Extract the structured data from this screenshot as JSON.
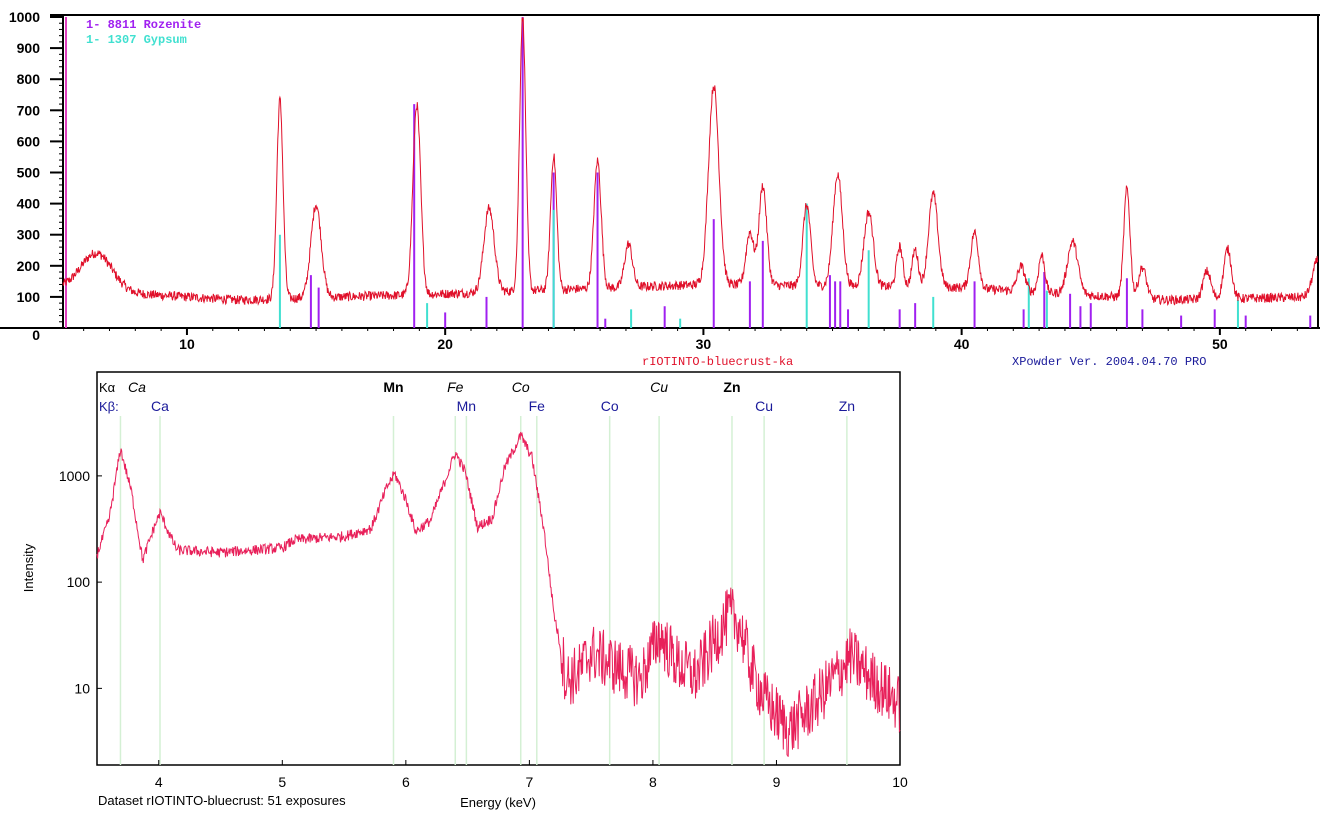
{
  "chart_data": [
    {
      "type": "line",
      "title": "",
      "xlabel": "",
      "ylabel": "",
      "xlim": [
        5.2,
        53.8
      ],
      "ylim": [
        0,
        1000
      ],
      "xticks": [
        10,
        20,
        30,
        40,
        50
      ],
      "yticks": [
        0,
        100,
        200,
        300,
        400,
        500,
        600,
        700,
        800,
        900,
        1000
      ],
      "grid": false,
      "legend": [
        {
          "label": "1- 8811 Rozenite",
          "color": "#a020f0"
        },
        {
          "label": "1- 1307 Gypsum",
          "color": "#40e0d0"
        }
      ],
      "footer_left": "rIOTINTO-bluecrust-ka",
      "footer_right": "XPowder Ver. 2004.04.70 PRO",
      "series_color": "#e0102a",
      "baseline": [
        [
          5.2,
          130
        ],
        [
          8,
          110
        ],
        [
          12,
          90
        ],
        [
          20,
          110
        ],
        [
          30,
          140
        ],
        [
          40,
          130
        ],
        [
          48,
          90
        ],
        [
          53.8,
          100
        ]
      ],
      "peaks": [
        [
          6.5,
          120,
          0.6
        ],
        [
          13.6,
          640,
          0.12
        ],
        [
          15,
          300,
          0.2
        ],
        [
          18.9,
          610,
          0.15
        ],
        [
          21.7,
          270,
          0.2
        ],
        [
          23.0,
          880,
          0.12
        ],
        [
          24.2,
          430,
          0.12
        ],
        [
          25.9,
          410,
          0.14
        ],
        [
          27.1,
          140,
          0.15
        ],
        [
          30.4,
          640,
          0.2
        ],
        [
          31.8,
          170,
          0.15
        ],
        [
          32.3,
          320,
          0.15
        ],
        [
          34.0,
          260,
          0.15
        ],
        [
          35.2,
          360,
          0.18
        ],
        [
          36.4,
          240,
          0.18
        ],
        [
          37.6,
          130,
          0.12
        ],
        [
          38.2,
          120,
          0.12
        ],
        [
          38.9,
          300,
          0.18
        ],
        [
          40.5,
          180,
          0.15
        ],
        [
          42.3,
          80,
          0.15
        ],
        [
          43.1,
          120,
          0.12
        ],
        [
          44.3,
          170,
          0.2
        ],
        [
          46.4,
          350,
          0.12
        ],
        [
          47,
          100,
          0.15
        ],
        [
          49.5,
          90,
          0.15
        ],
        [
          50.3,
          160,
          0.15
        ],
        [
          53.8,
          120,
          0.2
        ]
      ],
      "sticks": {
        "Rozenite": [
          [
            14.8,
            170
          ],
          [
            15.1,
            130
          ],
          [
            18.8,
            720
          ],
          [
            20,
            50
          ],
          [
            21.6,
            100
          ],
          [
            23.0,
            1000
          ],
          [
            24.2,
            500
          ],
          [
            25.9,
            500
          ],
          [
            26.2,
            30
          ],
          [
            28.5,
            70
          ],
          [
            30.4,
            350
          ],
          [
            31.8,
            150
          ],
          [
            32.3,
            280
          ],
          [
            34.9,
            170
          ],
          [
            35.1,
            150
          ],
          [
            35.3,
            150
          ],
          [
            35.6,
            60
          ],
          [
            37.6,
            60
          ],
          [
            38.2,
            80
          ],
          [
            40.5,
            150
          ],
          [
            42.4,
            60
          ],
          [
            43.2,
            180
          ],
          [
            44.2,
            110
          ],
          [
            44.6,
            70
          ],
          [
            45,
            80
          ],
          [
            46.4,
            160
          ],
          [
            47,
            60
          ],
          [
            48.5,
            40
          ],
          [
            49.8,
            60
          ],
          [
            51,
            40
          ],
          [
            53.5,
            40
          ]
        ],
        "Gypsum": [
          [
            13.6,
            300
          ],
          [
            19.3,
            80
          ],
          [
            24.2,
            380
          ],
          [
            27.2,
            60
          ],
          [
            29.1,
            30
          ],
          [
            34.0,
            400
          ],
          [
            36.4,
            250
          ],
          [
            38.9,
            100
          ],
          [
            42.6,
            160
          ],
          [
            43.3,
            120
          ],
          [
            50.7,
            90
          ]
        ]
      }
    },
    {
      "type": "line",
      "title": "",
      "xlabel": "Energy (keV)",
      "ylabel": "Intensity",
      "xlim": [
        3.5,
        10
      ],
      "ylim": [
        1.9,
        9500
      ],
      "yscale": "log",
      "xticks": [
        4,
        5,
        6,
        7,
        8,
        9,
        10
      ],
      "yticks": [
        10,
        100,
        1000
      ],
      "grid": false,
      "footer": "Dataset rIOTINTO-bluecrust: 51 exposures",
      "series_color": "#e8205a",
      "row_labels": {
        "ka": "Kα",
        "kb": "Kβ:"
      },
      "ka_lines": [
        {
          "label": "Ca",
          "energy": 3.69,
          "style": "italic"
        },
        {
          "label": "Mn",
          "energy": 5.9,
          "style": "bold"
        },
        {
          "label": "Fe",
          "energy": 6.4,
          "style": "italic"
        },
        {
          "label": "Co",
          "energy": 6.93,
          "style": "italic"
        },
        {
          "label": "Cu",
          "energy": 8.05,
          "style": "italic"
        },
        {
          "label": "Zn",
          "energy": 8.64,
          "style": "bold"
        }
      ],
      "kb_lines": [
        {
          "label": "Ca",
          "energy": 4.01
        },
        {
          "label": "Mn",
          "energy": 6.49
        },
        {
          "label": "Fe",
          "energy": 7.06
        },
        {
          "label": "Co",
          "energy": 7.65
        },
        {
          "label": "Cu",
          "energy": 8.9
        },
        {
          "label": "Zn",
          "energy": 9.57
        }
      ],
      "envelope": [
        [
          3.5,
          180
        ],
        [
          3.6,
          400
        ],
        [
          3.69,
          1800
        ],
        [
          3.78,
          700
        ],
        [
          3.87,
          160
        ],
        [
          3.95,
          300
        ],
        [
          4.01,
          450
        ],
        [
          4.1,
          260
        ],
        [
          4.15,
          200
        ],
        [
          4.5,
          190
        ],
        [
          5.0,
          210
        ],
        [
          5.1,
          250
        ],
        [
          5.5,
          270
        ],
        [
          5.72,
          320
        ],
        [
          5.85,
          800
        ],
        [
          5.91,
          1050
        ],
        [
          6.0,
          600
        ],
        [
          6.08,
          300
        ],
        [
          6.2,
          380
        ],
        [
          6.4,
          1650
        ],
        [
          6.48,
          1100
        ],
        [
          6.58,
          330
        ],
        [
          6.7,
          400
        ],
        [
          6.8,
          1200
        ],
        [
          6.93,
          2400
        ],
        [
          7.02,
          1500
        ],
        [
          7.12,
          300
        ],
        [
          7.2,
          50
        ],
        [
          7.25,
          25
        ],
        [
          7.3,
          12
        ],
        [
          7.4,
          14
        ],
        [
          7.5,
          22
        ],
        [
          7.7,
          16
        ],
        [
          7.9,
          12
        ],
        [
          8.05,
          32
        ],
        [
          8.2,
          17
        ],
        [
          8.35,
          13
        ],
        [
          8.5,
          28
        ],
        [
          8.62,
          50
        ],
        [
          8.7,
          40
        ],
        [
          8.8,
          15
        ],
        [
          8.9,
          8
        ],
        [
          9.1,
          4
        ],
        [
          9.3,
          7
        ],
        [
          9.5,
          14
        ],
        [
          9.6,
          20
        ],
        [
          9.75,
          13
        ],
        [
          10,
          7
        ]
      ]
    }
  ]
}
